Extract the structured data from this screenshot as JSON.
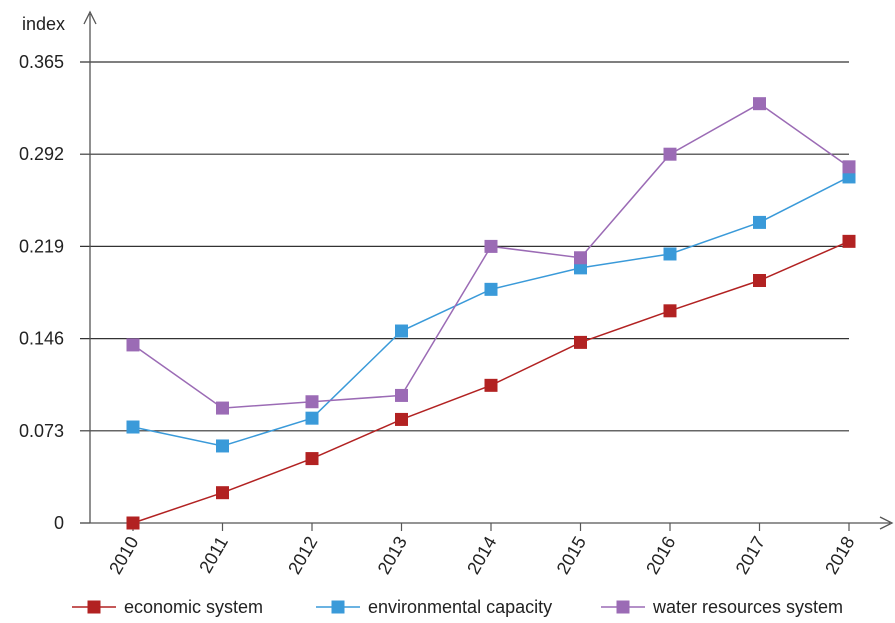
{
  "chart_data": {
    "type": "line",
    "title": "",
    "xlabel": "",
    "ylabel": "index",
    "ylim": [
      0,
      0.365
    ],
    "yticks": [
      "0",
      "0.073",
      "0.146",
      "0.219",
      "0.292",
      "0.365"
    ],
    "categories": [
      "2010",
      "2011",
      "2012",
      "2013",
      "2014",
      "2015",
      "2016",
      "2017",
      "2018"
    ],
    "grid": "horizontal",
    "legend_position": "bottom",
    "series": [
      {
        "name": "economic system",
        "color": "#b22222",
        "values": [
          0.0,
          0.024,
          0.051,
          0.082,
          0.109,
          0.143,
          0.168,
          0.192,
          0.223
        ]
      },
      {
        "name": "environmental capacity",
        "color": "#3a9ad9",
        "values": [
          0.076,
          0.061,
          0.083,
          0.152,
          0.185,
          0.202,
          0.213,
          0.238,
          0.274
        ]
      },
      {
        "name": "water resources system",
        "color": "#9b6bb5",
        "values": [
          0.141,
          0.091,
          0.096,
          0.101,
          0.219,
          0.21,
          0.292,
          0.332,
          0.282
        ]
      }
    ]
  }
}
